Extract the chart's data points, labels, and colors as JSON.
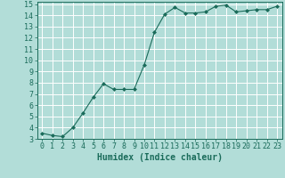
{
  "x": [
    0,
    1,
    2,
    3,
    4,
    5,
    6,
    7,
    8,
    9,
    10,
    11,
    12,
    13,
    14,
    15,
    16,
    17,
    18,
    19,
    20,
    21,
    22,
    23
  ],
  "y": [
    3.5,
    3.3,
    3.2,
    4.0,
    5.3,
    6.7,
    7.9,
    7.4,
    7.4,
    7.4,
    9.6,
    12.5,
    14.1,
    14.7,
    14.2,
    14.2,
    14.3,
    14.8,
    14.9,
    14.3,
    14.4,
    14.5,
    14.5,
    14.8
  ],
  "line_color": "#1a6b5a",
  "marker": "D",
  "marker_size": 2.0,
  "bg_color": "#b2ddd8",
  "grid_color": "#ffffff",
  "xlabel": "Humidex (Indice chaleur)",
  "xlabel_fontsize": 7,
  "tick_fontsize": 6,
  "ylim": [
    3,
    15.2
  ],
  "xlim": [
    -0.5,
    23.5
  ],
  "yticks": [
    3,
    4,
    5,
    6,
    7,
    8,
    9,
    10,
    11,
    12,
    13,
    14,
    15
  ],
  "xticks": [
    0,
    1,
    2,
    3,
    4,
    5,
    6,
    7,
    8,
    9,
    10,
    11,
    12,
    13,
    14,
    15,
    16,
    17,
    18,
    19,
    20,
    21,
    22,
    23
  ]
}
